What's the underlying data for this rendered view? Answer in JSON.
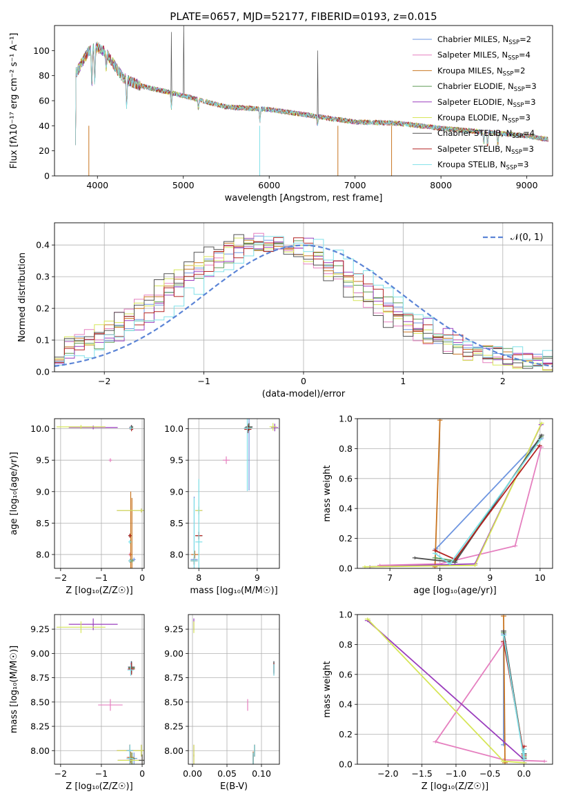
{
  "figure": {
    "title": "PLATE=0657, MJD=52177, FIBERID=0193, z=0.015"
  },
  "models": [
    {
      "name": "Chabrier MILES",
      "nssp": "2",
      "color": "#6e95e0"
    },
    {
      "name": "Salpeter MILES",
      "nssp": "4",
      "color": "#e57fbf"
    },
    {
      "name": "Kroupa MILES",
      "nssp": "2",
      "color": "#c8741f"
    },
    {
      "name": "Chabrier ELODIE",
      "nssp": "3",
      "color": "#5e9a55"
    },
    {
      "name": "Salpeter ELODIE",
      "nssp": "3",
      "color": "#9a3dbd"
    },
    {
      "name": "Kroupa ELODIE",
      "nssp": "3",
      "color": "#d6e658"
    },
    {
      "name": "Chabrier STELIB",
      "nssp": "4",
      "color": "#505050"
    },
    {
      "name": "Salpeter STELIB",
      "nssp": "3",
      "color": "#b22222"
    },
    {
      "name": "Kroupa STELIB",
      "nssp": "3",
      "color": "#7fe0e8"
    }
  ],
  "legend_nssp_label": "N",
  "legend_nssp_sub": "SSP",
  "chart_data": [
    {
      "id": "spectrum",
      "type": "line",
      "xlabel": "wavelength [Angstrom, rest frame]",
      "ylabel": "Flux [fλ10⁻¹⁷ erg cm⁻² s⁻¹ A⁻¹]",
      "xlim": [
        3500,
        9300
      ],
      "ylim": [
        0,
        120
      ],
      "xticks": [
        4000,
        5000,
        6000,
        7000,
        8000,
        9000
      ],
      "yticks": [
        0,
        20,
        40,
        60,
        80,
        100
      ],
      "legend_position": "top-right",
      "continuum": {
        "x": [
          3750,
          3900,
          4000,
          4100,
          4300,
          4500,
          5000,
          5500,
          6000,
          6500,
          7000,
          7500,
          8000,
          8500,
          9000,
          9250
        ],
        "y": [
          82,
          100,
          103,
          98,
          78,
          72,
          64,
          55,
          53,
          48,
          43,
          42,
          38,
          35,
          32,
          29
        ]
      }
    },
    {
      "id": "residuals",
      "type": "histogram",
      "xlabel": "(data-model)/error",
      "ylabel": "Normed distribution",
      "xlim": [
        -2.5,
        2.5
      ],
      "ylim": [
        0,
        0.47
      ],
      "xticks": [
        -2,
        -1,
        0,
        1,
        2
      ],
      "yticks": [
        0.0,
        0.1,
        0.2,
        0.3,
        0.4
      ],
      "bin_width": 0.1,
      "reference_label": "𝒩(0, 1)",
      "reference_color": "#5b84d6"
    },
    {
      "id": "age-vs-Z",
      "type": "scatter",
      "xlabel": "Z [log₁₀(Z/Z☉)]",
      "ylabel": "age  [log₁₀(age/yr)]",
      "xlim": [
        -2.15,
        0.05
      ],
      "ylim": [
        7.78,
        10.16
      ],
      "xticks": [
        -2,
        -1,
        0
      ],
      "yticks": [
        8.0,
        8.5,
        9.0,
        9.5,
        10.0
      ]
    },
    {
      "id": "age-vs-mass",
      "type": "scatter",
      "xlabel": "mass [log₁₀(M/M☉)]",
      "ylabel": "",
      "xlim": [
        7.82,
        9.38
      ],
      "ylim": [
        7.78,
        10.16
      ],
      "xticks": [
        8,
        9
      ],
      "yticks": [
        8.0,
        8.5,
        9.0,
        9.5,
        10.0
      ]
    },
    {
      "id": "weight-vs-age",
      "type": "line",
      "xlabel": "age  [log₁₀(age/yr)]",
      "ylabel": "mass weight",
      "xlim": [
        6.35,
        10.25
      ],
      "ylim": [
        0,
        1
      ],
      "xticks": [
        7,
        8,
        9,
        10
      ],
      "yticks": [
        0.0,
        0.2,
        0.4,
        0.6,
        0.8,
        1.0
      ]
    },
    {
      "id": "mass-vs-Z",
      "type": "scatter",
      "xlabel": "Z [log₁₀(Z/Z☉)]",
      "ylabel": "mass [log₁₀(M/M☉)]",
      "xlim": [
        -2.15,
        0.05
      ],
      "ylim": [
        7.86,
        9.4
      ],
      "xticks": [
        -2,
        -1,
        0
      ],
      "yticks": [
        8.0,
        8.25,
        8.5,
        8.75,
        9.0,
        9.25
      ]
    },
    {
      "id": "mass-vs-ebv",
      "type": "scatter",
      "xlabel": "E(B-V)",
      "ylabel": "",
      "xlim": [
        -0.006,
        0.126
      ],
      "ylim": [
        7.86,
        9.4
      ],
      "xticks": [
        0.0,
        0.05,
        0.1
      ],
      "yticks": [
        8.0,
        8.25,
        8.5,
        8.75,
        9.0,
        9.25
      ]
    },
    {
      "id": "weight-vs-Z",
      "type": "line",
      "xlabel": "Z [log₁₀(Z/Z☉)]",
      "ylabel": "mass weight",
      "xlim": [
        -2.45,
        0.42
      ],
      "ylim": [
        0,
        1
      ],
      "xticks": [
        -2.0,
        -1.5,
        -1.0,
        -0.5,
        0.0
      ],
      "yticks": [
        0.0,
        0.2,
        0.4,
        0.6,
        0.8,
        1.0
      ]
    }
  ]
}
